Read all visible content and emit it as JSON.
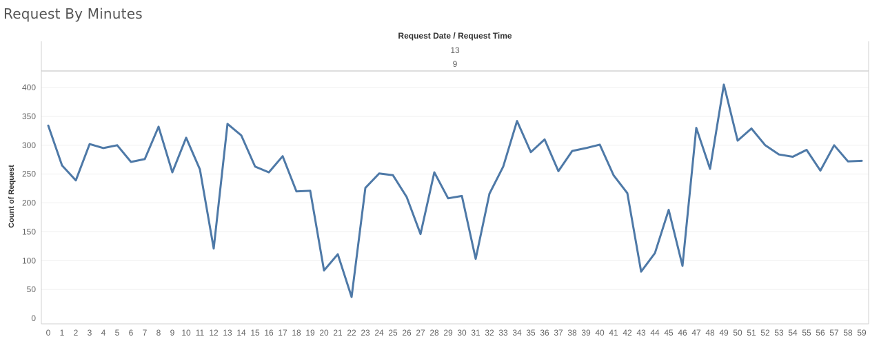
{
  "page": {
    "title": "Request By Minutes"
  },
  "header": {
    "title": "Request Date  /  Request Time",
    "date_value": "13",
    "time_value": "9"
  },
  "chart_data": {
    "type": "line",
    "title": "Request By Minutes",
    "xlabel": "",
    "ylabel": "Count of Request",
    "ylim": [
      0,
      430
    ],
    "yticks": [
      0,
      50,
      100,
      150,
      200,
      250,
      300,
      350,
      400
    ],
    "grid": true,
    "line_color": "#4e79a7",
    "x": [
      0,
      1,
      2,
      3,
      4,
      5,
      6,
      7,
      8,
      9,
      10,
      11,
      12,
      13,
      14,
      15,
      16,
      17,
      18,
      19,
      20,
      21,
      22,
      23,
      24,
      25,
      26,
      27,
      28,
      29,
      30,
      31,
      32,
      33,
      34,
      35,
      36,
      37,
      38,
      39,
      40,
      41,
      42,
      43,
      44,
      45,
      46,
      47,
      48,
      49,
      50,
      51,
      52,
      53,
      54,
      55,
      56,
      57,
      58,
      59
    ],
    "series": [
      {
        "values": [
          334,
          265,
          239,
          302,
          295,
          300,
          271,
          276,
          332,
          253,
          313,
          258,
          121,
          337,
          317,
          263,
          253,
          281,
          220,
          221,
          83,
          111,
          37,
          226,
          251,
          248,
          210,
          146,
          253,
          208,
          212,
          103,
          216,
          263,
          342,
          288,
          310,
          255,
          290,
          295,
          301,
          248,
          217,
          81,
          113,
          188,
          91,
          330,
          259,
          405,
          308,
          329,
          300,
          284,
          280,
          292,
          256,
          300,
          272,
          273
        ]
      }
    ]
  }
}
